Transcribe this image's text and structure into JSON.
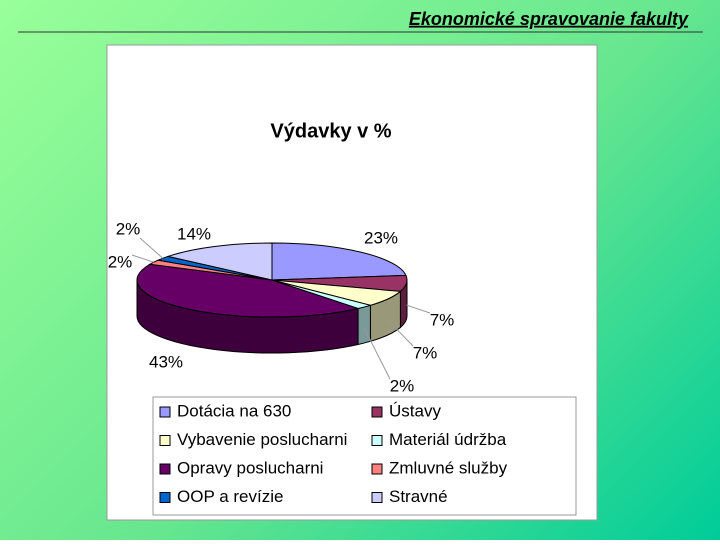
{
  "header": {
    "title": "Ekonomické spravovanie fakulty"
  },
  "chart_data": {
    "type": "pie",
    "title": "Výdavky v %",
    "categories": [
      "Dotácia na 630",
      "Ústavy",
      "Vybavenie poslucharni",
      "Materiál údržba",
      "Opravy poslucharni",
      "Zmluvné služby",
      "OOP a revízie",
      "Stravné"
    ],
    "values": [
      23,
      7,
      7,
      2,
      43,
      2,
      2,
      14
    ],
    "value_labels": [
      "23%",
      "7%",
      "7%",
      "2%",
      "43%",
      "2%",
      "2%",
      "14%"
    ],
    "colors": [
      "#9999ff",
      "#993366",
      "#ffffcc",
      "#ccffff",
      "#660066",
      "#ff8080",
      "#0066cc",
      "#ccccff"
    ],
    "legend": "bottom"
  }
}
